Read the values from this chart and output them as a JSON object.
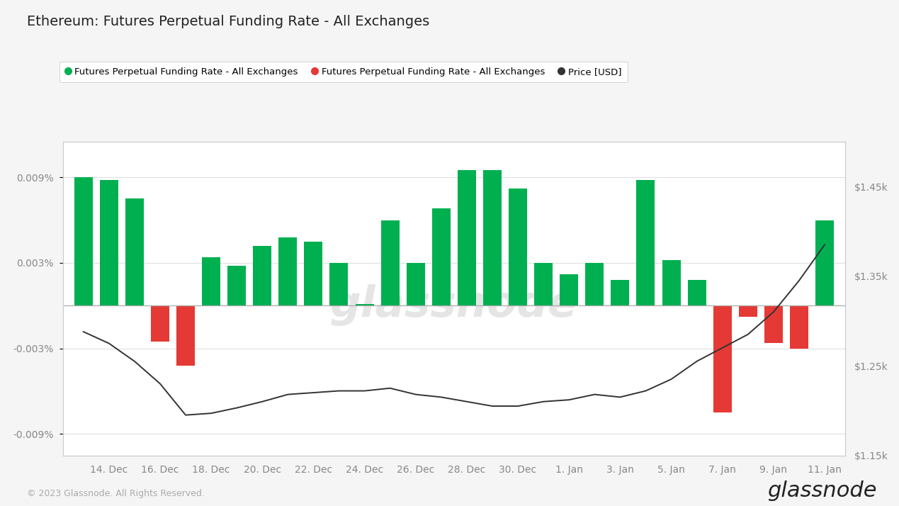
{
  "title": "Ethereum: Futures Perpetual Funding Rate - All Exchanges",
  "legend_labels": [
    "Futures Perpetual Funding Rate - All Exchanges",
    "Futures Perpetual Funding Rate - All Exchanges",
    "Price [USD]"
  ],
  "legend_colors": [
    "#00b050",
    "#e53935",
    "#333333"
  ],
  "bar_values": [
    0.009,
    0.0088,
    0.0075,
    -0.0025,
    -0.0042,
    0.0034,
    0.0028,
    0.0042,
    0.0048,
    0.0045,
    0.003,
    0.0001,
    0.006,
    0.003,
    0.0068,
    0.0095,
    0.0095,
    0.0082,
    0.003,
    0.0022,
    0.003,
    0.0018,
    0.0088,
    0.0032,
    0.0018,
    -0.0075,
    -0.0008,
    -0.0026,
    -0.003,
    0.006
  ],
  "bar_colors": [
    "#00b050",
    "#00b050",
    "#00b050",
    "#e53935",
    "#e53935",
    "#00b050",
    "#00b050",
    "#00b050",
    "#00b050",
    "#00b050",
    "#00b050",
    "#00b050",
    "#00b050",
    "#00b050",
    "#00b050",
    "#00b050",
    "#00b050",
    "#00b050",
    "#00b050",
    "#00b050",
    "#00b050",
    "#00b050",
    "#00b050",
    "#00b050",
    "#00b050",
    "#e53935",
    "#e53935",
    "#e53935",
    "#e53935",
    "#00b050"
  ],
  "price_values": [
    1288,
    1275,
    1255,
    1230,
    1195,
    1197,
    1203,
    1210,
    1218,
    1220,
    1222,
    1222,
    1225,
    1218,
    1215,
    1210,
    1205,
    1205,
    1210,
    1212,
    1218,
    1215,
    1222,
    1235,
    1255,
    1270,
    1285,
    1310,
    1345,
    1385
  ],
  "xtick_labels": [
    "14. Dec",
    "16. Dec",
    "18. Dec",
    "20. Dec",
    "22. Dec",
    "24. Dec",
    "26. Dec",
    "28. Dec",
    "30. Dec",
    "1. Jan",
    "3. Jan",
    "5. Jan",
    "7. Jan",
    "9. Jan",
    "11. Jan"
  ],
  "xtick_positions": [
    1,
    3,
    5,
    7,
    9,
    11,
    13,
    15,
    17,
    19,
    21,
    23,
    25,
    27,
    29
  ],
  "ylim": [
    -0.0105,
    0.0115
  ],
  "yticks_left": [
    -0.009,
    -0.003,
    0.003,
    0.009
  ],
  "ytick_labels_left": [
    "-0.009%",
    "-0.003%",
    "0.003%",
    "0.009%"
  ],
  "ylim_right": [
    1150,
    1500
  ],
  "yticks_right": [
    1150,
    1250,
    1350,
    1450
  ],
  "ytick_labels_right": [
    "$1.15k",
    "$1.25k",
    "$1.35k",
    "$1.45k"
  ],
  "background_color": "#f5f5f5",
  "plot_bg_color": "#ffffff",
  "grid_color": "#e0e0e0",
  "zero_line_color": "#aaaaaa",
  "watermark": "glassnode",
  "footer_text": "© 2023 Glassnode. All Rights Reserved."
}
